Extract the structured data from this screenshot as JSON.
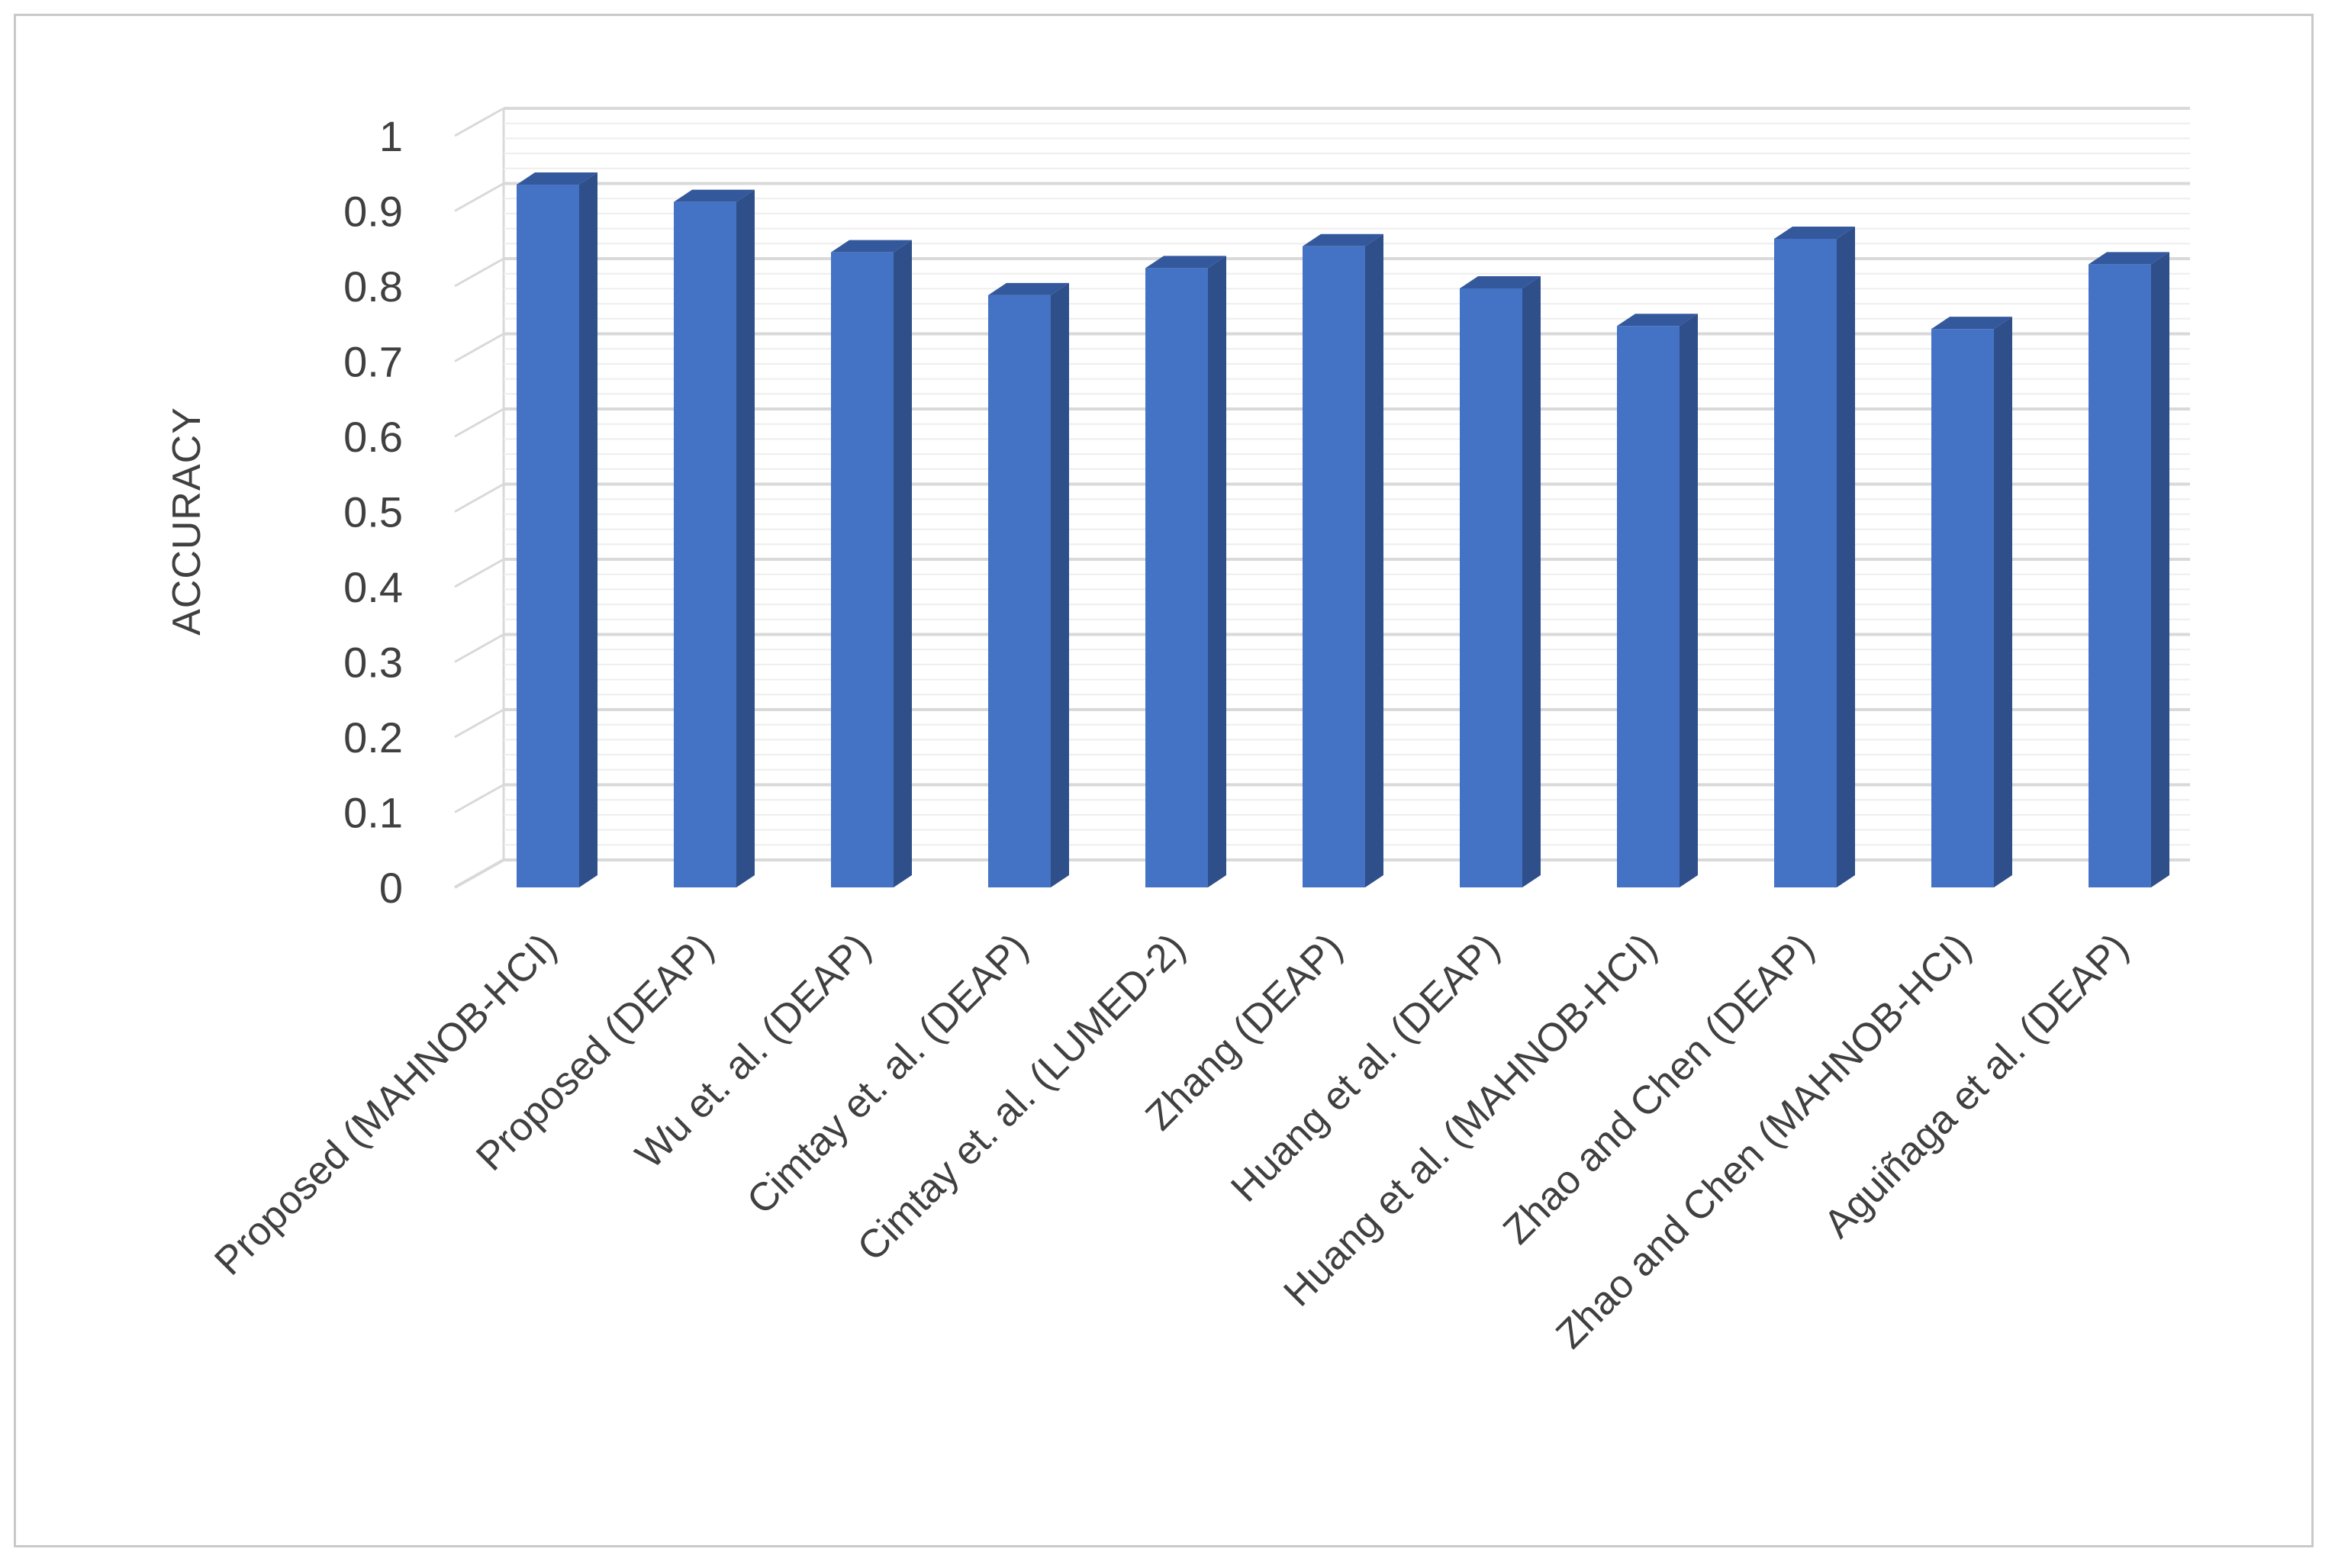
{
  "chart_data": {
    "type": "bar",
    "title": "",
    "xlabel": "",
    "ylabel": "ACCURACY",
    "ylim": [
      0,
      1
    ],
    "yticks": [
      0,
      0.1,
      0.2,
      0.3,
      0.4,
      0.5,
      0.6,
      0.7,
      0.8,
      0.9,
      1
    ],
    "grid": true,
    "legend": "none",
    "style": "3d-column",
    "categories": [
      "Proposed (MAHNOB-HCI)",
      "Proposed (DEAP)",
      "Wu et. al. (DEAP)",
      "Cimtay et. al. (DEAP)",
      "Cimtay et. al. (LUMED-2)",
      "Zhang (DEAP)",
      "Huang et al. (DEAP)",
      "Huang et al. (MAHNOB-HCI)",
      "Zhao and Chen (DEAP)",
      "Zhao and Chen (MAHNOB-HCI)",
      "Aguiñaga et al. (DEAP)"
    ],
    "values": [
      0.935,
      0.912,
      0.845,
      0.788,
      0.824,
      0.853,
      0.797,
      0.747,
      0.863,
      0.743,
      0.829
    ],
    "colors": {
      "front": "#4472c4",
      "side": "#2f4f8a",
      "top": "#34589c",
      "grid": "#d9d9d9"
    }
  }
}
